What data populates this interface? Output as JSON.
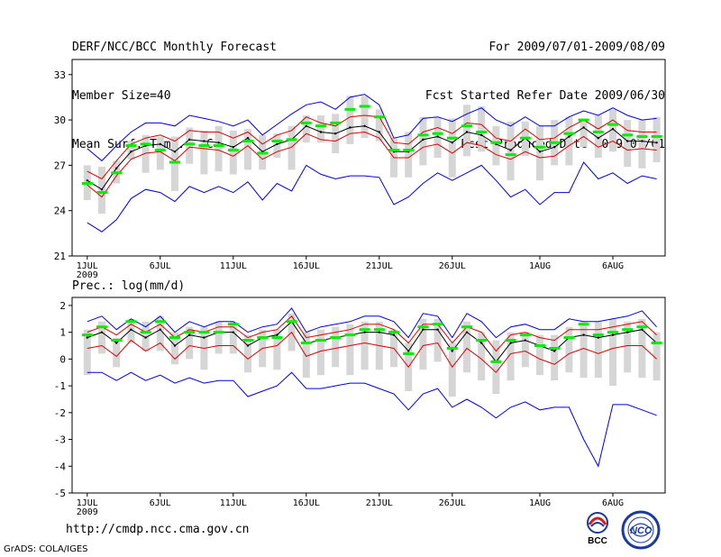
{
  "header": {
    "left": [
      "DERF/NCC/BCC Monthly Forecast",
      "Member Size=40",
      "Mean Surf. Temp.: °C"
    ],
    "right": [
      "For 2009/07/01-2009/08/09",
      "Fcst Started Refer Date 2009/06/30",
      "Fcst Produced Date 2009/07/01"
    ]
  },
  "footer": {
    "url": "http://cmdp.ncc.cma.gov.cn",
    "credit": "GrADS: COLA/IGES"
  },
  "logos": {
    "bcc": "BCC",
    "ncc": "NCC"
  },
  "colors": {
    "envelope": "#0000e0",
    "spread": "#dd0000",
    "mean": "#000000",
    "box": "#d6d6d6",
    "member": "#00ee00"
  },
  "chart_data": [
    {
      "type": "line",
      "title": "Mean Surf. Temp.: °C",
      "x": [
        1,
        2,
        3,
        4,
        5,
        6,
        7,
        8,
        9,
        10,
        11,
        12,
        13,
        14,
        15,
        16,
        17,
        18,
        19,
        20,
        21,
        22,
        23,
        24,
        25,
        26,
        27,
        28,
        29,
        30,
        31,
        32,
        33,
        34,
        35,
        36,
        37,
        38,
        39,
        40
      ],
      "x_ticks": [
        1,
        6,
        11,
        16,
        21,
        26,
        32,
        37
      ],
      "x_tick_labels": [
        "1JUL",
        "6JUL",
        "11JUL",
        "16JUL",
        "21JUL",
        "26JUL",
        "1AUG",
        "6AUG"
      ],
      "x_year": "2009",
      "ylim": [
        21,
        34
      ],
      "y_ticks": [
        21,
        24,
        27,
        30,
        33
      ],
      "series": [
        {
          "name": "max",
          "values": [
            28.1,
            27.3,
            28.3,
            29.2,
            29.8,
            29.8,
            29.6,
            30.3,
            30.1,
            29.9,
            29.6,
            30.0,
            29.0,
            29.7,
            30.4,
            31.0,
            31.2,
            30.7,
            31.5,
            31.7,
            31.0,
            28.8,
            29.0,
            30.1,
            30.2,
            29.9,
            30.4,
            30.8,
            30.0,
            29.6,
            30.2,
            29.6,
            29.6,
            30.2,
            30.6,
            30.3,
            30.8,
            30.3,
            30.0,
            30.1
          ]
        },
        {
          "name": "upper",
          "values": [
            26.6,
            26.1,
            27.3,
            28.4,
            28.8,
            29.0,
            28.6,
            29.3,
            29.2,
            29.2,
            28.8,
            29.2,
            28.4,
            29.0,
            29.3,
            30.2,
            29.8,
            29.6,
            30.2,
            30.3,
            30.2,
            28.5,
            28.4,
            29.2,
            29.5,
            29.1,
            29.8,
            29.7,
            28.8,
            28.6,
            29.4,
            28.7,
            28.8,
            29.5,
            30.0,
            29.4,
            30.0,
            29.3,
            29.2,
            29.2
          ]
        },
        {
          "name": "mean",
          "values": [
            26.0,
            25.4,
            26.8,
            27.9,
            28.3,
            28.4,
            27.9,
            28.7,
            28.6,
            28.5,
            28.2,
            28.8,
            27.9,
            28.4,
            28.7,
            29.6,
            29.2,
            29.1,
            29.5,
            29.6,
            29.2,
            27.9,
            27.9,
            28.7,
            28.9,
            28.5,
            29.2,
            29.0,
            28.4,
            28.0,
            28.8,
            27.9,
            28.2,
            28.9,
            29.5,
            28.8,
            29.4,
            28.6,
            28.6,
            28.5
          ]
        },
        {
          "name": "lower",
          "values": [
            25.7,
            24.9,
            26.3,
            27.4,
            27.8,
            27.9,
            27.3,
            28.2,
            28.1,
            28.0,
            27.6,
            28.3,
            27.4,
            27.9,
            28.2,
            29.1,
            28.7,
            28.6,
            29.1,
            29.2,
            28.8,
            27.5,
            27.5,
            28.2,
            28.4,
            27.8,
            28.5,
            28.3,
            27.7,
            27.4,
            27.9,
            27.5,
            27.6,
            28.3,
            28.9,
            28.2,
            28.6,
            28.0,
            28.1,
            28.0
          ]
        },
        {
          "name": "min",
          "values": [
            23.2,
            22.6,
            23.4,
            24.8,
            25.4,
            25.2,
            24.6,
            25.6,
            25.2,
            25.6,
            25.2,
            25.9,
            24.7,
            25.8,
            25.3,
            27.0,
            26.4,
            26.1,
            26.3,
            26.3,
            26.2,
            24.4,
            24.9,
            25.8,
            26.5,
            26.0,
            26.5,
            27.0,
            26.0,
            24.9,
            25.4,
            24.4,
            25.2,
            25.2,
            27.2,
            26.1,
            26.5,
            25.8,
            26.3,
            26.1
          ]
        },
        {
          "name": "box_top",
          "values": [
            27.0,
            26.9,
            27.3,
            28.6,
            29.0,
            28.9,
            28.9,
            29.5,
            29.3,
            29.6,
            29.3,
            29.4,
            29.0,
            29.1,
            29.6,
            30.3,
            30.3,
            30.4,
            31.6,
            31.6,
            30.7,
            28.8,
            29.2,
            30.2,
            30.2,
            30.1,
            31.0,
            30.9,
            29.6,
            29.9,
            29.9,
            29.6,
            30.0,
            30.2,
            30.0,
            30.3,
            30.7,
            30.0,
            30.0,
            30.2
          ]
        },
        {
          "name": "box_bottom",
          "values": [
            24.7,
            23.8,
            25.8,
            27.4,
            26.5,
            26.7,
            25.3,
            27.1,
            26.4,
            26.6,
            26.4,
            26.7,
            26.7,
            27.5,
            26.7,
            28.5,
            28.5,
            27.8,
            28.4,
            28.8,
            28.6,
            26.2,
            26.2,
            27.0,
            27.5,
            26.2,
            27.6,
            27.9,
            27.0,
            26.0,
            27.6,
            26.0,
            27.0,
            27.0,
            28.2,
            27.5,
            27.9,
            26.9,
            26.8,
            27.2
          ]
        },
        {
          "name": "member",
          "values": [
            25.8,
            25.2,
            26.5,
            28.3,
            28.4,
            28.0,
            27.2,
            28.4,
            28.3,
            28.3,
            28.0,
            28.6,
            27.8,
            28.6,
            28.7,
            29.8,
            29.6,
            29.8,
            30.7,
            30.9,
            30.2,
            28.0,
            28.0,
            29.0,
            29.1,
            28.8,
            29.6,
            29.2,
            28.5,
            27.7,
            28.8,
            28.2,
            28.5,
            29.1,
            30.0,
            29.2,
            29.7,
            29.0,
            28.9,
            28.9
          ]
        }
      ]
    },
    {
      "type": "line",
      "title": "Prec.: log(mm/d)",
      "x": [
        1,
        2,
        3,
        4,
        5,
        6,
        7,
        8,
        9,
        10,
        11,
        12,
        13,
        14,
        15,
        16,
        17,
        18,
        19,
        20,
        21,
        22,
        23,
        24,
        25,
        26,
        27,
        28,
        29,
        30,
        31,
        32,
        33,
        34,
        35,
        36,
        37,
        38,
        39,
        40
      ],
      "x_ticks": [
        1,
        6,
        11,
        16,
        21,
        26,
        32,
        37
      ],
      "x_tick_labels": [
        "1JUL",
        "6JUL",
        "11JUL",
        "16JUL",
        "21JUL",
        "26JUL",
        "1AUG",
        "6AUG"
      ],
      "x_year": "2009",
      "ylim": [
        -5,
        2.3
      ],
      "y_ticks": [
        -5,
        -4,
        -3,
        -2,
        -1,
        0,
        1,
        2
      ],
      "series": [
        {
          "name": "max",
          "values": [
            1.4,
            1.6,
            1.1,
            1.5,
            1.2,
            1.6,
            1.0,
            1.4,
            1.2,
            1.4,
            1.4,
            1.0,
            1.2,
            1.3,
            1.9,
            1.0,
            1.2,
            1.3,
            1.4,
            1.6,
            1.6,
            1.4,
            0.8,
            1.7,
            1.6,
            0.8,
            1.7,
            1.4,
            0.8,
            1.2,
            1.3,
            1.1,
            1.1,
            1.5,
            1.4,
            1.4,
            1.5,
            1.6,
            1.8,
            1.2
          ]
        },
        {
          "name": "upper",
          "values": [
            1.0,
            1.2,
            0.9,
            1.3,
            1.0,
            1.3,
            0.8,
            1.1,
            1.0,
            1.2,
            1.2,
            0.8,
            1.0,
            1.1,
            1.6,
            0.8,
            0.9,
            1.0,
            1.1,
            1.3,
            1.3,
            1.1,
            0.6,
            1.3,
            1.3,
            0.6,
            1.2,
            1.0,
            0.3,
            0.9,
            1.0,
            0.8,
            0.7,
            1.1,
            1.1,
            1.1,
            1.2,
            1.3,
            1.4,
            0.9
          ]
        },
        {
          "name": "mean",
          "values": [
            0.8,
            1.0,
            0.6,
            1.1,
            0.8,
            1.1,
            0.5,
            0.9,
            0.8,
            1.0,
            1.0,
            0.5,
            0.8,
            0.9,
            1.4,
            0.6,
            0.7,
            0.8,
            0.9,
            1.0,
            1.0,
            0.9,
            0.3,
            1.1,
            1.1,
            0.3,
            1.0,
            0.6,
            -0.1,
            0.6,
            0.7,
            0.5,
            0.3,
            0.8,
            0.9,
            0.8,
            0.9,
            1.0,
            1.1,
            0.6
          ]
        },
        {
          "name": "lower",
          "values": [
            0.4,
            0.5,
            0.1,
            0.7,
            0.3,
            0.6,
            0.0,
            0.5,
            0.4,
            0.5,
            0.5,
            0.0,
            0.4,
            0.5,
            1.0,
            0.1,
            0.3,
            0.4,
            0.5,
            0.6,
            0.5,
            0.4,
            -0.3,
            0.5,
            0.6,
            -0.3,
            0.4,
            0.0,
            -0.5,
            0.2,
            0.3,
            0.0,
            -0.2,
            0.2,
            0.4,
            0.2,
            0.4,
            0.5,
            0.5,
            0.0
          ]
        },
        {
          "name": "min",
          "values": [
            -0.5,
            -0.5,
            -0.8,
            -0.5,
            -0.8,
            -0.6,
            -0.9,
            -0.7,
            -0.9,
            -0.8,
            -0.8,
            -1.4,
            -1.2,
            -1.0,
            -0.5,
            -1.1,
            -1.1,
            -1.0,
            -0.9,
            -0.9,
            -1.1,
            -1.3,
            -1.9,
            -1.3,
            -1.1,
            -1.8,
            -1.5,
            -1.8,
            -2.2,
            -1.8,
            -1.6,
            -1.9,
            -1.8,
            -1.8,
            -3.0,
            -4.0,
            -1.7,
            -1.7,
            -1.9,
            -2.1
          ]
        },
        {
          "name": "box_top",
          "values": [
            1.1,
            1.4,
            0.8,
            1.5,
            1.4,
            1.6,
            1.0,
            1.2,
            1.2,
            1.4,
            1.4,
            0.9,
            1.1,
            1.1,
            1.7,
            1.0,
            1.1,
            1.2,
            1.3,
            1.4,
            1.4,
            1.1,
            0.6,
            1.5,
            1.5,
            0.6,
            1.4,
            1.0,
            0.7,
            1.0,
            1.0,
            0.9,
            0.9,
            1.2,
            1.4,
            1.4,
            1.5,
            1.4,
            1.5,
            1.0
          ]
        },
        {
          "name": "box_bottom",
          "values": [
            -0.6,
            0.2,
            -0.3,
            0.6,
            0.3,
            0.3,
            -0.2,
            0.0,
            -0.4,
            0.2,
            0.2,
            -0.5,
            -0.3,
            -0.4,
            0.3,
            -0.7,
            -0.6,
            -0.3,
            -0.6,
            -0.4,
            -0.4,
            -0.3,
            -1.2,
            -0.4,
            -0.1,
            -1.4,
            -0.5,
            -0.8,
            -1.3,
            -0.8,
            -0.3,
            -0.6,
            -0.8,
            -0.5,
            -0.7,
            -0.7,
            -1.0,
            -0.5,
            -0.7,
            -0.8
          ]
        },
        {
          "name": "member",
          "values": [
            0.9,
            1.2,
            0.7,
            1.4,
            1.0,
            1.4,
            0.8,
            1.0,
            1.0,
            1.0,
            1.3,
            0.7,
            0.8,
            0.8,
            1.4,
            0.6,
            0.7,
            0.8,
            0.9,
            1.1,
            1.1,
            1.0,
            0.2,
            1.2,
            1.3,
            0.4,
            1.2,
            0.7,
            -0.1,
            0.7,
            0.9,
            0.5,
            0.4,
            0.8,
            1.3,
            0.9,
            1.0,
            1.1,
            1.2,
            0.6
          ]
        }
      ]
    }
  ]
}
